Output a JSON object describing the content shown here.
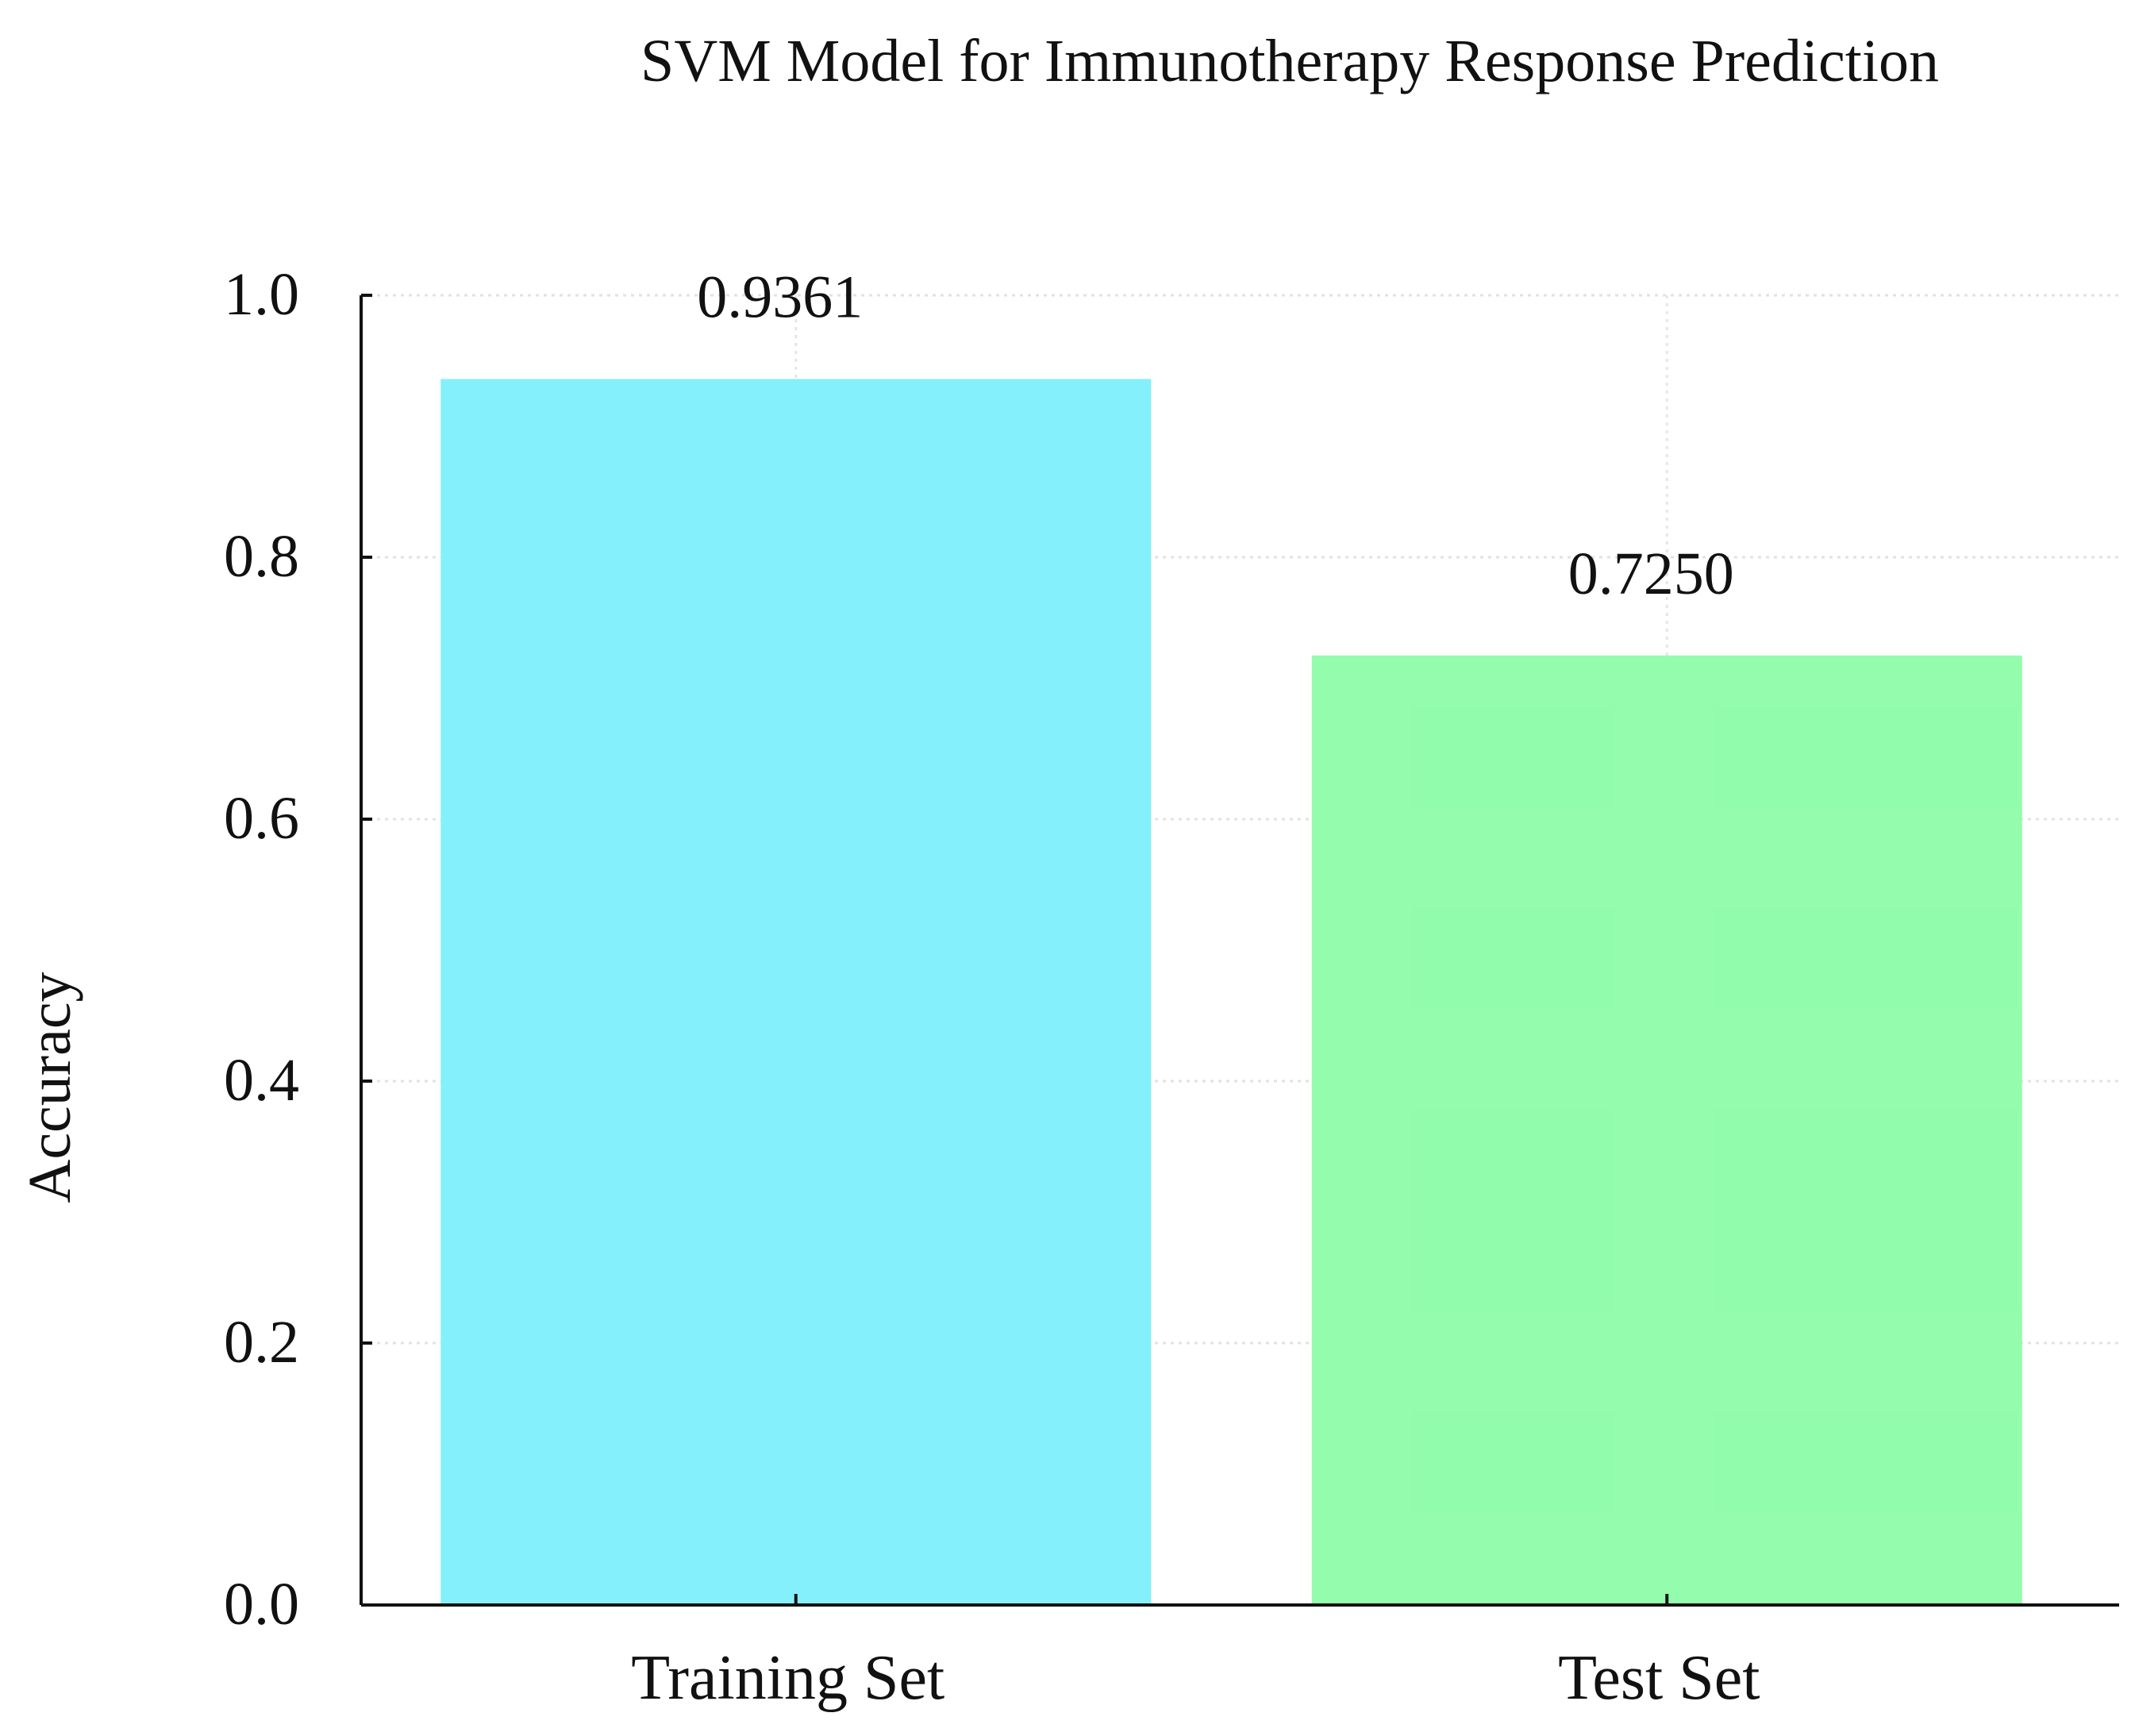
{
  "chart_data": {
    "type": "bar",
    "title": "SVM Model for Immunotherapy Response Prediction",
    "xlabel": "",
    "ylabel": "Accuracy",
    "categories": [
      "Training Set",
      "Test Set"
    ],
    "values": [
      0.9361,
      0.725
    ],
    "value_labels": [
      "0.9361",
      "0.7250"
    ],
    "colors": [
      "#80f0fc",
      "#8ffcaa"
    ],
    "ylim": [
      0.0,
      1.0
    ],
    "yticks": [
      0.0,
      0.2,
      0.4,
      0.6,
      0.8,
      1.0
    ],
    "ytick_labels": [
      "0.0",
      "0.2",
      "0.4",
      "0.6",
      "0.8",
      "1.0"
    ],
    "grid": true,
    "legend": "none"
  }
}
